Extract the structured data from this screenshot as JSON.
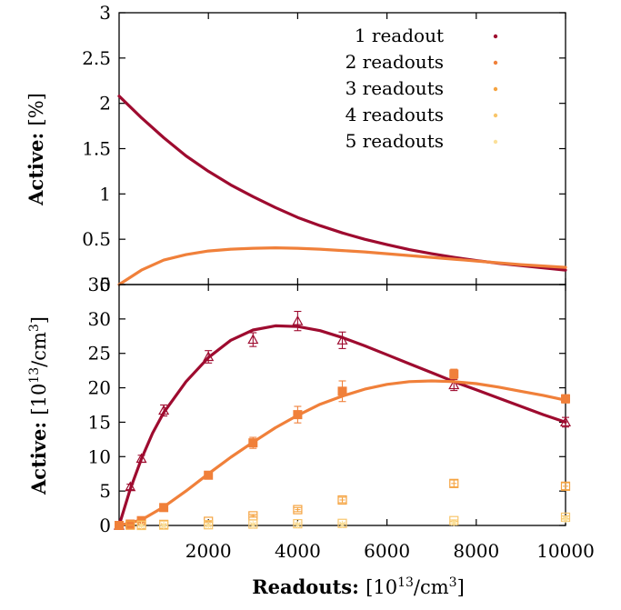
{
  "chart_data": [
    {
      "type": "line",
      "ylabel": {
        "bold": "Active:",
        "unit": "[%]"
      },
      "xlim": [
        0,
        10000
      ],
      "ylim": [
        0,
        3
      ],
      "yticks": [
        "0",
        "0.5",
        "1",
        "1.5",
        "2",
        "2.5",
        "3"
      ],
      "legend_position": "top-right",
      "legend": [
        {
          "name": "1 readout",
          "color": "#9e0b2f"
        },
        {
          "name": "2 readouts",
          "color": "#f0803a"
        },
        {
          "name": "3 readouts",
          "color": "#f5a340"
        },
        {
          "name": "4 readouts",
          "color": "#f8c56a"
        },
        {
          "name": "5 readouts",
          "color": "#fbe09a"
        }
      ],
      "series": [
        {
          "legend_index": 0,
          "color": "#9e0b2f",
          "x": [
            0,
            500,
            1000,
            1500,
            2000,
            2500,
            3000,
            3500,
            4000,
            4500,
            5000,
            5500,
            6000,
            6500,
            7000,
            7500,
            8000,
            8500,
            9000,
            9500,
            10000
          ],
          "y": [
            2.08,
            1.84,
            1.62,
            1.42,
            1.25,
            1.1,
            0.97,
            0.85,
            0.74,
            0.65,
            0.57,
            0.5,
            0.44,
            0.385,
            0.34,
            0.3,
            0.265,
            0.235,
            0.21,
            0.185,
            0.16
          ]
        },
        {
          "legend_index": 1,
          "color": "#f0803a",
          "x": [
            0,
            500,
            1000,
            1500,
            2000,
            2500,
            3000,
            3500,
            4000,
            4500,
            5000,
            5500,
            6000,
            6500,
            7000,
            7500,
            8000,
            8500,
            9000,
            9500,
            10000
          ],
          "y": [
            0.0,
            0.16,
            0.27,
            0.33,
            0.37,
            0.39,
            0.4,
            0.405,
            0.4,
            0.39,
            0.375,
            0.36,
            0.34,
            0.32,
            0.3,
            0.28,
            0.26,
            0.24,
            0.22,
            0.205,
            0.19
          ]
        }
      ]
    },
    {
      "type": "scatter",
      "ylabel": {
        "bold": "Active:",
        "unit": "[10",
        "sup": "13",
        "unit_tail": "/cm",
        "sup2": "3",
        "close": "]"
      },
      "xlabel": {
        "bold": "Readouts:",
        "unit": "[10",
        "sup": "13",
        "unit_tail": "/cm",
        "sup2": "3",
        "close": "]"
      },
      "xlim": [
        0,
        10000
      ],
      "ylim": [
        0,
        35
      ],
      "xticks": [
        "2000",
        "4000",
        "6000",
        "8000",
        "10000"
      ],
      "yticks": [
        "0",
        "5",
        "10",
        "15",
        "20",
        "25",
        "30",
        "35"
      ],
      "series": [
        {
          "color": "#9e0b2f",
          "marker": "triangle",
          "x": [
            0,
            250,
            500,
            1000,
            2000,
            3000,
            4000,
            5000,
            7500,
            10000
          ],
          "y": [
            0,
            5.6,
            9.7,
            16.7,
            24.5,
            27.0,
            29.7,
            26.9,
            20.4,
            15.0
          ],
          "err": [
            0,
            0.4,
            0.5,
            0.8,
            0.9,
            1.0,
            1.4,
            1.2,
            0.8,
            0.7
          ]
        },
        {
          "color": "#9e0b2f",
          "marker": "line",
          "x": [
            0,
            250,
            500,
            750,
            1000,
            1500,
            2000,
            2500,
            3000,
            3500,
            4000,
            4500,
            5000,
            5500,
            6000,
            6500,
            7000,
            7500,
            8000,
            8500,
            9000,
            9500,
            10000
          ],
          "y": [
            0,
            5.3,
            9.7,
            13.4,
            16.4,
            20.9,
            24.4,
            26.9,
            28.4,
            29.0,
            28.9,
            28.3,
            27.3,
            26.1,
            24.8,
            23.5,
            22.2,
            20.9,
            19.7,
            18.5,
            17.3,
            16.1,
            15.0
          ]
        },
        {
          "color": "#f0803a",
          "marker": "filled-square",
          "x": [
            0,
            250,
            500,
            1000,
            2000,
            3000,
            4000,
            5000,
            7500,
            10000
          ],
          "y": [
            0,
            0.2,
            0.7,
            2.6,
            7.3,
            12.0,
            16.1,
            19.5,
            22.0,
            18.4
          ],
          "err": [
            0,
            0.1,
            0.1,
            0.3,
            0.5,
            0.8,
            1.2,
            1.5,
            0.7,
            0.6
          ]
        },
        {
          "color": "#f0803a",
          "marker": "line",
          "x": [
            0,
            500,
            1000,
            1500,
            2000,
            2500,
            3000,
            3500,
            4000,
            4500,
            5000,
            5500,
            6000,
            6500,
            7000,
            7500,
            8000,
            8500,
            9000,
            9500,
            10000
          ],
          "y": [
            0,
            0.8,
            2.7,
            5.0,
            7.5,
            9.9,
            12.1,
            14.2,
            16.0,
            17.6,
            18.8,
            19.8,
            20.5,
            20.9,
            21.0,
            20.9,
            20.6,
            20.1,
            19.5,
            18.9,
            18.2
          ]
        },
        {
          "color": "#f5a340",
          "marker": "open-square",
          "x": [
            250,
            500,
            1000,
            2000,
            3000,
            4000,
            5000,
            7500,
            10000
          ],
          "y": [
            0.05,
            0.1,
            0.15,
            0.6,
            1.4,
            2.3,
            3.7,
            6.1,
            5.7
          ],
          "err": [
            0,
            0,
            0,
            0.1,
            0.2,
            0.3,
            0.4,
            0.5,
            0.5
          ]
        },
        {
          "color": "#f8c56a",
          "marker": "open-square",
          "x": [
            500,
            1000,
            2000,
            3000,
            4000,
            5000,
            7500,
            10000
          ],
          "y": [
            0.0,
            0.05,
            0.1,
            0.2,
            0.25,
            0.3,
            0.7,
            1.2
          ],
          "err": [
            0,
            0,
            0,
            0,
            0,
            0,
            0.1,
            0.2
          ]
        },
        {
          "color": "#fbe09a",
          "marker": "star",
          "x": [
            500,
            1000,
            2000,
            3000,
            4000,
            5000,
            7500,
            10000
          ],
          "y": [
            0.0,
            0.0,
            0.05,
            0.1,
            0.1,
            0.15,
            0.4,
            0.9
          ],
          "err": [
            0,
            0,
            0,
            0,
            0,
            0,
            0,
            0
          ]
        }
      ]
    }
  ]
}
